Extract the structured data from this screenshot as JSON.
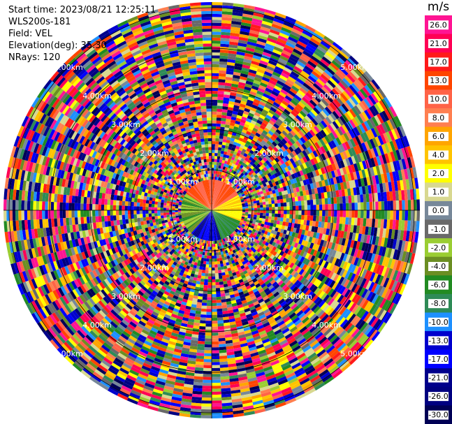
{
  "info": {
    "start_time": "Start time: 2023/08/21 12:25:11",
    "instrument": "WLS200s-181",
    "field": "Field: VEL",
    "elevation": "Elevation(deg): 35.30",
    "nrays": "NRays: 120"
  },
  "colorbar": {
    "unit": "m/s",
    "labels": [
      "26.0",
      "21.0",
      "17.0",
      "13.0",
      "10.0",
      "8.0",
      "6.0",
      "4.0",
      "2.0",
      "1.0",
      "0.0",
      "-1.0",
      "-2.0",
      "-4.0",
      "-6.0",
      "-8.0",
      "-10.0",
      "-13.0",
      "-17.0",
      "-21.0",
      "-26.0",
      "-30.0"
    ],
    "colors": [
      "#ff1493",
      "#ff0055",
      "#ff1a1a",
      "#ff4500",
      "#ff6347",
      "#ff7f50",
      "#ffa500",
      "#ffc400",
      "#ffff00",
      "#d8d890",
      "#778899",
      "#696969",
      "#9acd32",
      "#6b8e23",
      "#228b22",
      "#2e8b57",
      "#1e90ff",
      "#0000cd",
      "#0000ff",
      "#00008b",
      "#000080",
      "#000055"
    ]
  },
  "rings": {
    "labels": [
      "1.00km",
      "2.00km",
      "3.00km",
      "4.00km",
      "5.00km"
    ]
  }
}
